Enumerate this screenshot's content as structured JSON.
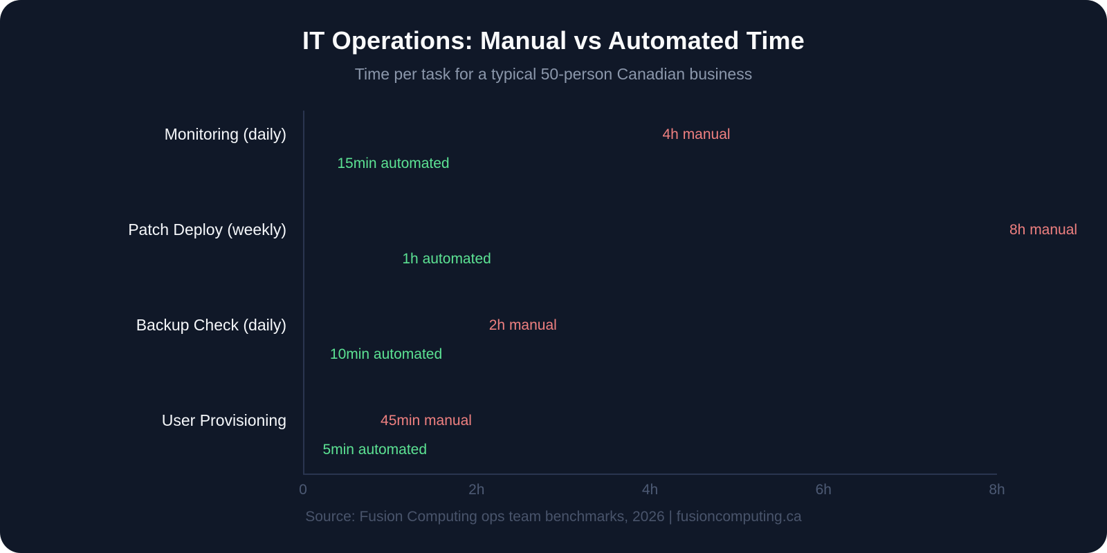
{
  "page": {
    "background": "#ffffff",
    "card_background": "#101828"
  },
  "chart_data": {
    "type": "bar",
    "orientation": "horizontal",
    "title": "IT Operations: Manual vs Automated Time",
    "subtitle": "Time per task for a typical 50-person Canadian business",
    "categories": [
      "Monitoring (daily)",
      "Patch Deploy (weekly)",
      "Backup Check (daily)",
      "User Provisioning"
    ],
    "series": [
      {
        "name": "manual",
        "color": "#b03a40",
        "label_color": "#ef8080",
        "values_hours": [
          4,
          8,
          2,
          0.75
        ],
        "labels": [
          "4h manual",
          "8h manual",
          "2h manual",
          "45min manual"
        ]
      },
      {
        "name": "automated",
        "color": "#25c55f",
        "label_color": "#5ce293",
        "values_hours": [
          0.25,
          1,
          0.1667,
          0.0833
        ],
        "labels": [
          "15min automated",
          "1h automated",
          "10min automated",
          "5min automated"
        ]
      }
    ],
    "x_axis": {
      "min": 0,
      "max": 8,
      "unit": "hours",
      "ticks": [
        {
          "label": "0",
          "value": 0
        },
        {
          "label": "2h",
          "value": 2
        },
        {
          "label": "4h",
          "value": 4
        },
        {
          "label": "6h",
          "value": 6
        },
        {
          "label": "8h",
          "value": 8
        }
      ]
    },
    "grid": false,
    "legend": "none"
  },
  "footer": {
    "source": "Source: Fusion Computing ops team benchmarks, 2026 | fusioncomputing.ca"
  }
}
